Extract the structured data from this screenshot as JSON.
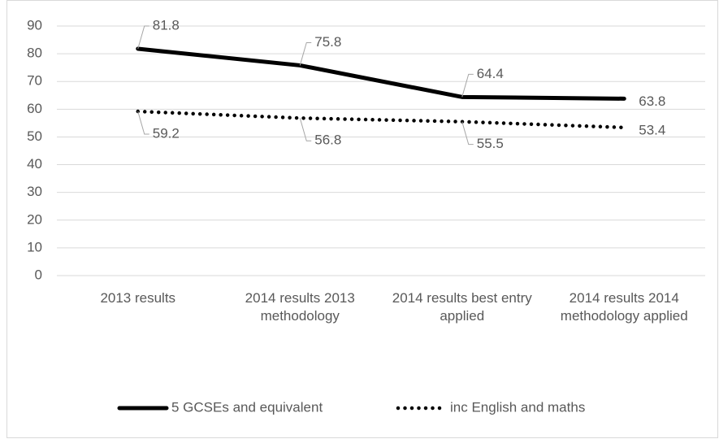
{
  "chart_data": {
    "type": "line",
    "categories": [
      "2013 results",
      "2014 results 2013 methodology",
      "2014 results best entry applied",
      "2014 results 2014 methodology applied"
    ],
    "series": [
      {
        "name": "5 GCSEs and equivalent",
        "color": "#000000",
        "style": "solid",
        "values": [
          81.8,
          75.8,
          64.4,
          63.8
        ]
      },
      {
        "name": "inc English and maths",
        "color": "#000000",
        "style": "dotted",
        "values": [
          59.2,
          56.8,
          55.5,
          53.4
        ]
      }
    ],
    "ylim": [
      0,
      90
    ],
    "yticks": [
      0,
      10,
      20,
      30,
      40,
      50,
      60,
      70,
      80,
      90
    ],
    "grid": true,
    "data_labels": true,
    "legend": "bottom"
  }
}
